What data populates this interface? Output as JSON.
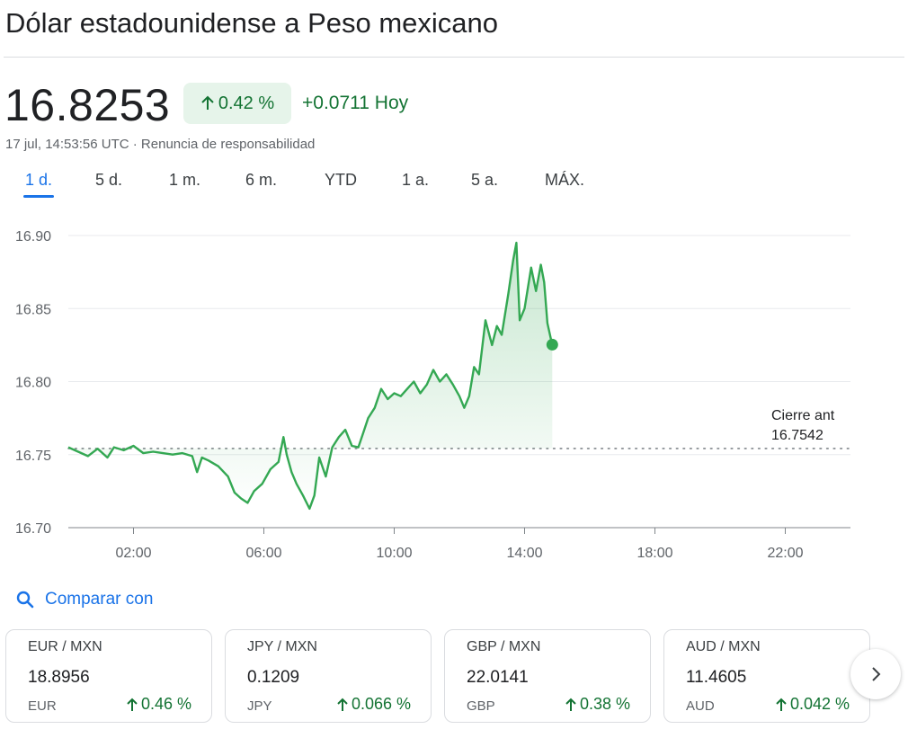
{
  "header": {
    "title": "Dólar estadounidense a Peso mexicano"
  },
  "quote": {
    "price": "16.8253",
    "percent_change": "0.42 %",
    "change": "+0.0711",
    "change_period": "Hoy",
    "timestamp": "17 jul, 14:53:56 UTC",
    "separator": " · ",
    "disclaimer": "Renuncia de responsabilidad"
  },
  "range_tabs": [
    {
      "label": "1 d.",
      "active": true
    },
    {
      "label": "5 d.",
      "active": false
    },
    {
      "label": "1 m.",
      "active": false
    },
    {
      "label": "6 m.",
      "active": false
    },
    {
      "label": "YTD",
      "active": false
    },
    {
      "label": "1 a.",
      "active": false
    },
    {
      "label": "5 a.",
      "active": false
    },
    {
      "label": "MÁX.",
      "active": false
    }
  ],
  "chart_data": {
    "type": "area",
    "x_unit": "hours",
    "xlim": [
      0,
      24
    ],
    "ylim": [
      16.7,
      16.9
    ],
    "y_ticks": [
      "16.70",
      "16.75",
      "16.80",
      "16.85",
      "16.90"
    ],
    "y_tick_values": [
      16.7,
      16.75,
      16.8,
      16.85,
      16.9
    ],
    "x_ticks": [
      "02:00",
      "06:00",
      "10:00",
      "14:00",
      "18:00",
      "22:00"
    ],
    "x_tick_values": [
      2,
      6,
      10,
      14,
      18,
      22
    ],
    "grid": true,
    "series": [
      {
        "color": "#34a853",
        "x": [
          0,
          0.3,
          0.6,
          0.9,
          1.2,
          1.4,
          1.7,
          2.0,
          2.3,
          2.6,
          2.9,
          3.2,
          3.5,
          3.8,
          3.95,
          4.1,
          4.3,
          4.6,
          4.9,
          5.1,
          5.3,
          5.5,
          5.7,
          5.95,
          6.2,
          6.45,
          6.6,
          6.7,
          6.85,
          7.0,
          7.2,
          7.4,
          7.55,
          7.7,
          7.9,
          8.1,
          8.3,
          8.5,
          8.7,
          8.9,
          9.05,
          9.2,
          9.4,
          9.6,
          9.8,
          10.0,
          10.2,
          10.4,
          10.6,
          10.8,
          11.0,
          11.2,
          11.4,
          11.6,
          11.8,
          12.0,
          12.15,
          12.3,
          12.45,
          12.6,
          12.8,
          13.0,
          13.15,
          13.3,
          13.5,
          13.65,
          13.75,
          13.85,
          14.0,
          14.2,
          14.35,
          14.5,
          14.6,
          14.7,
          14.85
        ],
        "values": [
          16.755,
          16.752,
          16.749,
          16.754,
          16.748,
          16.755,
          16.753,
          16.756,
          16.751,
          16.752,
          16.751,
          16.75,
          16.751,
          16.749,
          16.738,
          16.748,
          16.746,
          16.742,
          16.735,
          16.724,
          16.72,
          16.717,
          16.725,
          16.73,
          16.74,
          16.745,
          16.762,
          16.75,
          16.738,
          16.73,
          16.722,
          16.713,
          16.722,
          16.748,
          16.735,
          16.755,
          16.762,
          16.767,
          16.756,
          16.755,
          16.765,
          16.775,
          16.782,
          16.795,
          16.788,
          16.792,
          16.79,
          16.795,
          16.8,
          16.792,
          16.798,
          16.808,
          16.8,
          16.805,
          16.798,
          16.79,
          16.782,
          16.79,
          16.81,
          16.805,
          16.842,
          16.825,
          16.838,
          16.832,
          16.86,
          16.883,
          16.895,
          16.842,
          16.85,
          16.878,
          16.862,
          16.88,
          16.868,
          16.84,
          16.825
        ]
      }
    ],
    "last_point": {
      "x": 14.85,
      "y": 16.8253
    },
    "reference_line": {
      "label": "Cierre ant",
      "value": 16.7542,
      "value_label": "16.7542"
    }
  },
  "compare": {
    "label": "Comparar con"
  },
  "cards": [
    {
      "pair": "EUR / MXN",
      "rate": "18.8956",
      "currency": "EUR",
      "change": "0.46 %"
    },
    {
      "pair": "JPY / MXN",
      "rate": "0.1209",
      "currency": "JPY",
      "change": "0.066 %"
    },
    {
      "pair": "GBP / MXN",
      "rate": "22.0141",
      "currency": "GBP",
      "change": "0.38 %"
    },
    {
      "pair": "AUD / MXN",
      "rate": "11.4605",
      "currency": "AUD",
      "change": "0.042 %"
    }
  ],
  "icons": {
    "search": "search-icon",
    "up_arrow": "arrow-up-icon",
    "next": "chevron-right-icon"
  },
  "colors": {
    "accent": "#1a73e8",
    "positive": "#137333",
    "positive_bg": "#e6f4ea",
    "series": "#34a853"
  }
}
